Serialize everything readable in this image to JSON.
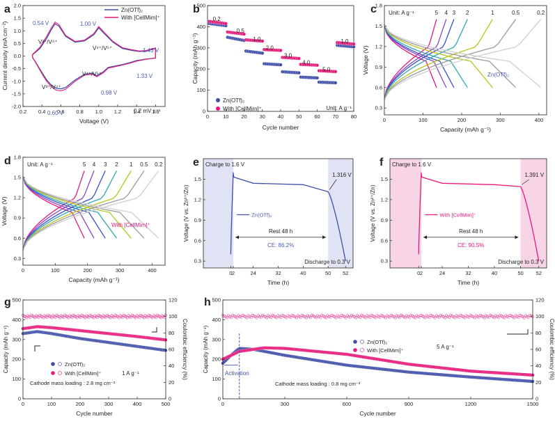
{
  "colors": {
    "zn": "#3f4fa8",
    "cell": "#e6197a",
    "axis": "#222222",
    "label": "#4a5bb5",
    "shade_blue": "#dfe3f3",
    "shade_pink": "#f8d5e6",
    "gray": "#555555"
  },
  "panels": [
    {
      "id": "a",
      "label": "a"
    },
    {
      "id": "b",
      "label": "b"
    },
    {
      "id": "c",
      "label": "c"
    },
    {
      "id": "d",
      "label": "d"
    },
    {
      "id": "e",
      "label": "e"
    },
    {
      "id": "f",
      "label": "f"
    },
    {
      "id": "g",
      "label": "g"
    },
    {
      "id": "h",
      "label": "h"
    }
  ],
  "chart_data": [
    {
      "panel": "a",
      "type": "line",
      "xlabel": "Voltage (V)",
      "ylabel": "Current density (mA cm⁻²)",
      "xlim": [
        0.2,
        1.7
      ],
      "ylim": [
        -2.0,
        2.0
      ],
      "xticks": [
        "0.2",
        "0.4",
        "0.6",
        "0.8",
        "1.0",
        "1.2",
        "1.4",
        "1.6"
      ],
      "yticks": [
        "-2.0",
        "-1.5",
        "-1.0",
        "-0.5",
        "0.0",
        "0.5",
        "1.0",
        "1.5",
        "2.0"
      ],
      "legend": [
        "Zn(OTf)₂",
        "With [CellMim]⁺"
      ],
      "annotations": [
        "0.54 V",
        "1.00 V",
        "1.43 V",
        "1.33 V",
        "0.98 V",
        "0.60 V",
        "V³⁺/V⁴⁺",
        "V⁴⁺/V⁵⁺",
        "V⁴⁺/V⁵⁺",
        "V³⁺/V⁴⁺",
        "0.2 mV s⁻¹"
      ],
      "series": [
        {
          "name": "Zn(OTf)₂",
          "x": [
            0.3,
            0.38,
            0.45,
            0.5,
            0.54,
            0.58,
            0.65,
            0.75,
            0.85,
            0.95,
            1.0,
            1.05,
            1.15,
            1.25,
            1.35,
            1.43,
            1.5,
            1.6,
            1.6,
            1.5,
            1.4,
            1.33,
            1.25,
            1.1,
            1.05,
            0.98,
            0.93,
            0.85,
            0.75,
            0.65,
            0.6,
            0.55,
            0.5,
            0.45,
            0.4,
            0.34,
            0.3
          ],
          "y": [
            0.05,
            0.3,
            0.7,
            1.05,
            1.28,
            1.18,
            0.78,
            0.55,
            0.6,
            0.85,
            1.12,
            0.92,
            0.55,
            0.3,
            0.22,
            0.18,
            0.2,
            0.3,
            -0.08,
            -0.12,
            -0.18,
            -0.26,
            -0.34,
            -0.45,
            -0.62,
            -0.78,
            -0.68,
            -0.72,
            -0.95,
            -1.25,
            -1.3,
            -1.28,
            -1.15,
            -0.95,
            -0.65,
            -0.28,
            -0.05
          ]
        },
        {
          "name": "With [CellMim]⁺",
          "x": [
            0.3,
            0.38,
            0.45,
            0.5,
            0.54,
            0.58,
            0.65,
            0.75,
            0.85,
            0.95,
            1.0,
            1.05,
            1.15,
            1.25,
            1.35,
            1.43,
            1.5,
            1.6,
            1.6,
            1.5,
            1.4,
            1.33,
            1.25,
            1.1,
            1.05,
            0.98,
            0.93,
            0.85,
            0.75,
            0.65,
            0.6,
            0.55,
            0.5,
            0.45,
            0.4,
            0.34,
            0.3
          ],
          "y": [
            0.06,
            0.35,
            0.78,
            1.12,
            1.35,
            1.24,
            0.82,
            0.58,
            0.63,
            0.9,
            1.17,
            0.97,
            0.58,
            0.33,
            0.25,
            0.2,
            0.22,
            0.32,
            -0.08,
            -0.13,
            -0.2,
            -0.28,
            -0.36,
            -0.48,
            -0.66,
            -0.82,
            -0.72,
            -0.76,
            -1.0,
            -1.32,
            -1.38,
            -1.35,
            -1.22,
            -1.0,
            -0.7,
            -0.3,
            -0.05
          ]
        }
      ]
    },
    {
      "panel": "b",
      "type": "scatter",
      "xlabel": "Cycle number",
      "ylabel": "Capacity (mAh g⁻¹)",
      "xlim": [
        0,
        80
      ],
      "ylim": [
        0,
        500
      ],
      "xticks": [
        "0",
        "10",
        "20",
        "30",
        "40",
        "50",
        "60",
        "70",
        "80"
      ],
      "yticks": [
        "0",
        "100",
        "200",
        "300",
        "400",
        "500"
      ],
      "legend": [
        "Zn(OTf)₂",
        "With [CellMim]⁺"
      ],
      "unit_note": "Unit: A g⁻¹",
      "rate_labels": [
        "0.2",
        "0.5",
        "1.0",
        "2.0",
        "3.0",
        "4.0",
        "5.0",
        "1.0"
      ],
      "series": [
        {
          "name": "Zn(OTf)₂",
          "segments": [
            [
              1,
              10,
              415,
              405
            ],
            [
              11,
              20,
              350,
              335
            ],
            [
              21,
              30,
              285,
              275
            ],
            [
              31,
              40,
              225,
              220
            ],
            [
              41,
              50,
              187,
              182
            ],
            [
              51,
              60,
              162,
              158
            ],
            [
              61,
              70,
              138,
              135
            ],
            [
              71,
              80,
              312,
              305
            ]
          ]
        },
        {
          "name": "With [CellMim]⁺",
          "segments": [
            [
              1,
              10,
              425,
              415
            ],
            [
              11,
              20,
              375,
              365
            ],
            [
              21,
              30,
              338,
              332
            ],
            [
              31,
              40,
              292,
              288
            ],
            [
              41,
              50,
              255,
              250
            ],
            [
              51,
              60,
              222,
              218
            ],
            [
              61,
              70,
              192,
              188
            ],
            [
              71,
              80,
              325,
              318
            ]
          ]
        }
      ]
    },
    {
      "panel": "c",
      "type": "line",
      "xlabel": "Capacity (mAh g⁻¹)",
      "ylabel": "Voltage (V)",
      "xlim": [
        0,
        420
      ],
      "ylim": [
        0.2,
        1.8
      ],
      "xticks": [
        "0",
        "100",
        "200",
        "300",
        "400"
      ],
      "yticks": [
        "0.3",
        "0.6",
        "0.9",
        "1.2",
        "1.5",
        "1.8"
      ],
      "unit_note": "Unit: A g⁻¹",
      "rate_labels": [
        "5",
        "4",
        "3",
        "2",
        "1",
        "0.5",
        "0.2"
      ],
      "legend": [
        "Zn(OTf)₂"
      ],
      "series_capacity": [
        135,
        160,
        180,
        215,
        280,
        340,
        405
      ]
    },
    {
      "panel": "d",
      "type": "line",
      "xlabel": "Capacity (mAh g⁻¹)",
      "ylabel": "Voltage (V)",
      "xlim": [
        0,
        440
      ],
      "ylim": [
        0.2,
        1.8
      ],
      "xticks": [
        "0",
        "100",
        "200",
        "300",
        "400"
      ],
      "yticks": [
        "0.3",
        "0.6",
        "0.9",
        "1.2",
        "1.5",
        "1.8"
      ],
      "unit_note": "Unit: A g⁻¹",
      "rate_labels": [
        "5",
        "4",
        "3",
        "2",
        "1",
        "0.5",
        "0.2"
      ],
      "legend": [
        "With [CellMim]⁺"
      ],
      "series_capacity": [
        190,
        220,
        255,
        290,
        335,
        375,
        420
      ]
    },
    {
      "panel": "e",
      "type": "line",
      "xlabel": "Time (h)",
      "ylabel": "Voltage (V vs. Zn²⁺/Zn)",
      "xlim": [
        -1,
        54
      ],
      "ylim": [
        0.2,
        1.8
      ],
      "xticks": [
        "0",
        "2",
        "24",
        "32",
        "40",
        "50",
        "52"
      ],
      "yticks": [
        "0.3",
        "0.6",
        "0.9",
        "1.2",
        "1.5"
      ],
      "legend": [
        "Zn(OTf)₂"
      ],
      "annotations": [
        "Charge to 1.6 V",
        "1.316 V",
        "Rest 48 h",
        "CE: 86.2%",
        "Discharge to 0.3 V"
      ]
    },
    {
      "panel": "f",
      "type": "line",
      "xlabel": "Time (h)",
      "ylabel": "Voltage (V vs. Zn²⁺/Zn)",
      "xlim": [
        -1,
        54
      ],
      "ylim": [
        0.2,
        1.8
      ],
      "xticks": [
        "0",
        "2",
        "24",
        "32",
        "40",
        "50",
        "52"
      ],
      "yticks": [
        "0.3",
        "0.6",
        "0.9",
        "1.2",
        "1.5"
      ],
      "legend": [
        "With [CellMim]⁺"
      ],
      "annotations": [
        "Charge to 1.6 V",
        "1.391 V",
        "Rest 48 h",
        "CE: 90.5%",
        "Discharge to 0.3 V"
      ]
    },
    {
      "panel": "g",
      "type": "scatter",
      "xlabel": "Cycle number",
      "ylabel": "Capacity (mAh g⁻¹)",
      "y2label": "Coulombic efficiency (%)",
      "xlim": [
        0,
        500
      ],
      "ylim": [
        0,
        500
      ],
      "y2lim": [
        0,
        120
      ],
      "xticks": [
        "0",
        "100",
        "200",
        "300",
        "400",
        "500"
      ],
      "yticks": [
        "0",
        "100",
        "200",
        "300",
        "400",
        "500"
      ],
      "y2ticks": [
        "0",
        "20",
        "40",
        "60",
        "80",
        "100",
        "120"
      ],
      "legend": [
        "Zn(OTf)₂",
        "With [CellMim]⁺"
      ],
      "rate_note": "1 A g⁻¹",
      "mass_note": "Cathode mass loading : 2.8 mg cm⁻²",
      "capacity": {
        "Zn(OTf)₂": [
          [
            0,
            330
          ],
          [
            50,
            340
          ],
          [
            100,
            330
          ],
          [
            200,
            305
          ],
          [
            300,
            285
          ],
          [
            400,
            265
          ],
          [
            500,
            245
          ]
        ],
        "With [CellMim]⁺": [
          [
            0,
            355
          ],
          [
            50,
            365
          ],
          [
            100,
            360
          ],
          [
            200,
            345
          ],
          [
            300,
            330
          ],
          [
            400,
            315
          ],
          [
            500,
            298
          ]
        ]
      },
      "ce": 100
    },
    {
      "panel": "h",
      "type": "scatter",
      "xlabel": "Cycle number",
      "ylabel": "Capacity (mAh g⁻¹)",
      "y2label": "Coulombic efficiency (%)",
      "xlim": [
        0,
        1500
      ],
      "ylim": [
        0,
        500
      ],
      "y2lim": [
        0,
        120
      ],
      "xticks": [
        "0",
        "300",
        "600",
        "900",
        "1200",
        "1500"
      ],
      "yticks": [
        "0",
        "100",
        "200",
        "300",
        "400",
        "500"
      ],
      "y2ticks": [
        "0",
        "20",
        "40",
        "60",
        "80",
        "100",
        "120"
      ],
      "legend": [
        "Zn(OTf)₂",
        "With [CellMim]⁺"
      ],
      "rate_note": "5 A g⁻¹",
      "mass_note": "Cathode mass loading : 0.8 mg cm⁻²",
      "activation_label": "Activation",
      "capacity": {
        "Zn(OTf)₂": [
          [
            0,
            180
          ],
          [
            50,
            230
          ],
          [
            80,
            255
          ],
          [
            150,
            250
          ],
          [
            300,
            220
          ],
          [
            600,
            170
          ],
          [
            900,
            135
          ],
          [
            1200,
            110
          ],
          [
            1500,
            88
          ]
        ],
        "With [CellMim]⁺": [
          [
            0,
            200
          ],
          [
            80,
            240
          ],
          [
            200,
            258
          ],
          [
            300,
            255
          ],
          [
            600,
            225
          ],
          [
            900,
            175
          ],
          [
            1200,
            140
          ],
          [
            1500,
            120
          ]
        ]
      },
      "ce": 100
    }
  ]
}
